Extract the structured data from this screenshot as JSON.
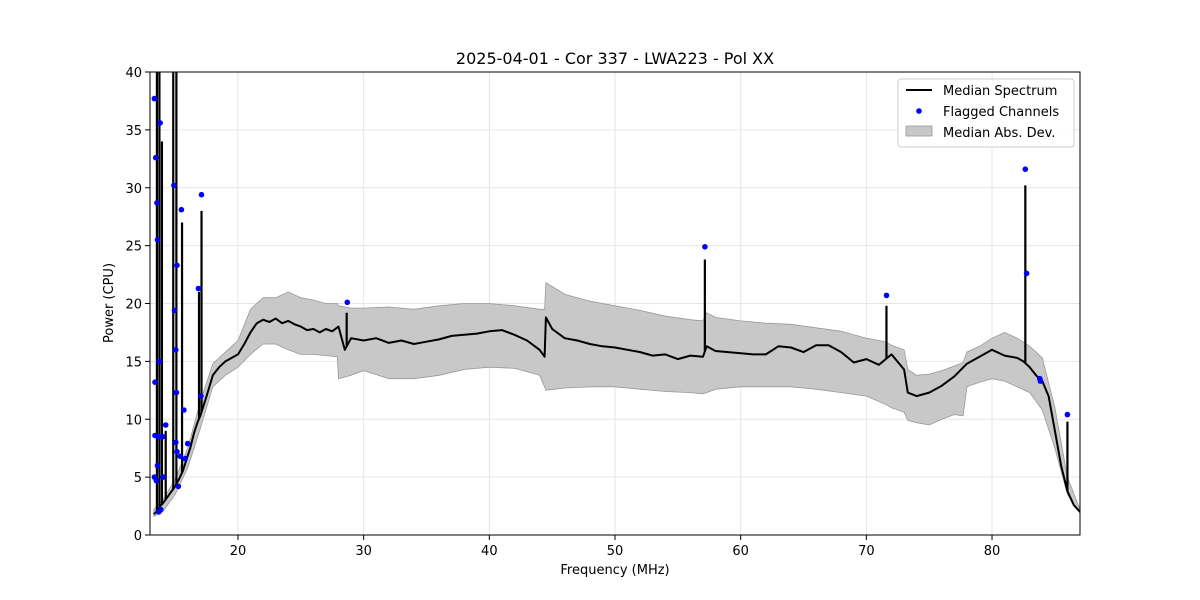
{
  "chart_data": {
    "type": "line",
    "title": "2025-04-01 - Cor 337 - LWA223 - Pol XX",
    "xlabel": "Frequency (MHz)",
    "ylabel": "Power (CPU)",
    "xlim": [
      13,
      87
    ],
    "ylim": [
      0,
      40
    ],
    "xticks": [
      20,
      30,
      40,
      50,
      60,
      70,
      80
    ],
    "yticks": [
      0,
      5,
      10,
      15,
      20,
      25,
      30,
      35,
      40
    ],
    "grid": true,
    "legend_position": "top-right",
    "colors": {
      "median": "#000000",
      "flagged": "#0000ff",
      "mad": "#c8c8c8",
      "mad_edge": "#999999"
    },
    "legend": [
      {
        "label": "Median Spectrum",
        "kind": "line"
      },
      {
        "label": "Flagged Channels",
        "kind": "point"
      },
      {
        "label": "Median Abs. Dev.",
        "kind": "band"
      }
    ],
    "series": [
      {
        "name": "Median Spectrum",
        "x": [
          13.3,
          13.5,
          13.6,
          13.7,
          13.8,
          13.9,
          14.0,
          14.2,
          14.4,
          14.6,
          14.8,
          15.0,
          15.3,
          15.6,
          15.9,
          16.2,
          16.5,
          16.8,
          17.0,
          17.5,
          18.0,
          18.5,
          19.0,
          19.5,
          20.0,
          20.5,
          21.0,
          21.5,
          22.0,
          22.5,
          23.0,
          23.5,
          24.0,
          24.5,
          25.0,
          25.5,
          26.0,
          26.5,
          27.0,
          27.5,
          28.0,
          28.5,
          29.0,
          30.0,
          31.0,
          32.0,
          33.0,
          34.0,
          35.0,
          36.0,
          37.0,
          38.0,
          39.0,
          40.0,
          41.0,
          42.0,
          43.0,
          44.0,
          44.4,
          44.5,
          45.0,
          46.0,
          47.0,
          48.0,
          49.0,
          50.0,
          51.0,
          52.0,
          53.0,
          54.0,
          55.0,
          56.0,
          57.0,
          57.3,
          58.0,
          59.0,
          60.0,
          61.0,
          62.0,
          63.0,
          64.0,
          65.0,
          66.0,
          67.0,
          68.0,
          69.0,
          70.0,
          71.0,
          72.0,
          73.0,
          73.3,
          74.0,
          75.0,
          76.0,
          77.0,
          78.0,
          79.0,
          80.0,
          81.0,
          82.0,
          82.5,
          83.0,
          83.5,
          84.0,
          84.5,
          85.0,
          85.5,
          86.0,
          86.5,
          87.0
        ],
        "y": [
          1.8,
          2.0,
          2.2,
          2.3,
          2.5,
          2.6,
          2.7,
          3.0,
          3.3,
          3.6,
          3.9,
          4.2,
          4.8,
          5.5,
          6.5,
          7.5,
          8.8,
          9.8,
          10.3,
          12.0,
          13.8,
          14.5,
          15.0,
          15.3,
          15.6,
          16.5,
          17.5,
          18.3,
          18.6,
          18.4,
          18.7,
          18.3,
          18.5,
          18.2,
          18.0,
          17.7,
          17.8,
          17.5,
          17.8,
          17.6,
          18.0,
          16.0,
          17.0,
          16.8,
          17.0,
          16.6,
          16.8,
          16.5,
          16.7,
          16.9,
          17.2,
          17.3,
          17.4,
          17.6,
          17.7,
          17.3,
          16.8,
          16.0,
          15.4,
          18.8,
          17.8,
          17.0,
          16.8,
          16.5,
          16.3,
          16.2,
          16.0,
          15.8,
          15.5,
          15.6,
          15.2,
          15.5,
          15.4,
          16.3,
          15.9,
          15.8,
          15.7,
          15.6,
          15.6,
          16.3,
          16.2,
          15.8,
          16.4,
          16.4,
          15.8,
          14.9,
          15.2,
          14.7,
          15.6,
          14.3,
          12.3,
          12.0,
          12.3,
          12.9,
          13.7,
          14.8,
          15.4,
          16.0,
          15.5,
          15.3,
          15.0,
          14.5,
          13.8,
          13.3,
          12.0,
          9.0,
          6.0,
          3.8,
          2.6,
          2.0
        ],
        "spikes": [
          {
            "x": 13.55,
            "top": 40
          },
          {
            "x": 13.75,
            "top": 40
          },
          {
            "x": 13.95,
            "top": 34
          },
          {
            "x": 14.25,
            "top": 9
          },
          {
            "x": 14.85,
            "top": 40
          },
          {
            "x": 15.1,
            "top": 40
          },
          {
            "x": 15.55,
            "top": 27
          },
          {
            "x": 16.9,
            "top": 21
          },
          {
            "x": 17.1,
            "top": 28
          },
          {
            "x": 28.65,
            "top": 19.2
          },
          {
            "x": 57.15,
            "top": 23.8
          },
          {
            "x": 71.6,
            "top": 19.8
          },
          {
            "x": 82.65,
            "top": 30.2
          },
          {
            "x": 86.0,
            "top": 9.8
          }
        ]
      },
      {
        "name": "Median Abs. Dev.",
        "x": [
          13.3,
          14.0,
          15.0,
          16.0,
          17.0,
          18.0,
          19.0,
          20.0,
          21.0,
          22.0,
          23.0,
          24.0,
          25.0,
          26.0,
          27.0,
          27.9,
          28.0,
          29.0,
          30.0,
          32.0,
          34.0,
          36.0,
          38.0,
          40.0,
          42.0,
          44.0,
          44.4,
          44.5,
          46.0,
          48.0,
          50.0,
          52.0,
          54.0,
          56.0,
          57.0,
          57.3,
          58.0,
          60.0,
          62.0,
          64.0,
          66.0,
          68.0,
          70.0,
          71.5,
          72.0,
          73.0,
          73.3,
          74.0,
          75.0,
          76.0,
          77.0,
          77.7,
          78.0,
          79.0,
          80.0,
          81.0,
          82.0,
          83.0,
          84.0,
          85.0,
          86.0,
          87.0
        ],
        "upper": [
          2.2,
          3.0,
          4.8,
          7.5,
          11.5,
          14.8,
          15.8,
          16.8,
          19.5,
          20.5,
          20.5,
          21.0,
          20.5,
          20.3,
          20.0,
          20.0,
          19.8,
          19.6,
          19.6,
          19.7,
          19.5,
          19.8,
          20.0,
          20.0,
          19.8,
          19.5,
          19.5,
          21.8,
          20.8,
          20.2,
          19.8,
          19.4,
          18.9,
          18.6,
          18.5,
          19.2,
          18.8,
          18.5,
          18.3,
          18.2,
          17.9,
          17.6,
          17.0,
          16.7,
          16.4,
          16.0,
          14.3,
          13.8,
          13.9,
          14.2,
          14.6,
          14.9,
          15.8,
          16.3,
          17.0,
          17.5,
          17.0,
          16.3,
          15.3,
          11.0,
          5.0,
          2.2
        ],
        "lower": [
          1.6,
          2.0,
          3.5,
          5.8,
          9.2,
          12.8,
          13.8,
          14.5,
          15.6,
          16.5,
          16.5,
          16.0,
          15.6,
          15.6,
          15.5,
          15.4,
          13.5,
          13.8,
          14.2,
          13.5,
          13.5,
          13.8,
          14.3,
          14.5,
          14.4,
          13.8,
          12.8,
          12.5,
          12.7,
          12.8,
          12.8,
          12.6,
          12.4,
          12.3,
          12.2,
          12.3,
          12.6,
          12.8,
          12.8,
          12.8,
          12.6,
          12.3,
          12.0,
          11.3,
          11.0,
          10.6,
          9.9,
          9.7,
          9.5,
          10.0,
          10.4,
          10.3,
          12.8,
          13.2,
          13.5,
          13.3,
          12.8,
          12.3,
          10.8,
          7.5,
          3.5,
          1.9
        ]
      },
      {
        "name": "Flagged Channels",
        "points": [
          {
            "x": 13.35,
            "y": 37.7
          },
          {
            "x": 13.45,
            "y": 32.6
          },
          {
            "x": 13.55,
            "y": 28.7
          },
          {
            "x": 13.6,
            "y": 25.5
          },
          {
            "x": 13.4,
            "y": 13.2
          },
          {
            "x": 13.4,
            "y": 8.6
          },
          {
            "x": 13.35,
            "y": 5.0
          },
          {
            "x": 13.5,
            "y": 4.7
          },
          {
            "x": 13.6,
            "y": 6.0
          },
          {
            "x": 13.65,
            "y": 8.5
          },
          {
            "x": 13.75,
            "y": 15.0
          },
          {
            "x": 13.7,
            "y": 2.0
          },
          {
            "x": 13.85,
            "y": 2.2
          },
          {
            "x": 13.8,
            "y": 35.6
          },
          {
            "x": 14.0,
            "y": 8.5
          },
          {
            "x": 14.05,
            "y": 5.0
          },
          {
            "x": 14.25,
            "y": 9.5
          },
          {
            "x": 14.9,
            "y": 30.2
          },
          {
            "x": 14.95,
            "y": 19.4
          },
          {
            "x": 15.05,
            "y": 16.0
          },
          {
            "x": 15.15,
            "y": 23.3
          },
          {
            "x": 15.1,
            "y": 12.3
          },
          {
            "x": 15.05,
            "y": 8.0
          },
          {
            "x": 15.15,
            "y": 7.2
          },
          {
            "x": 15.25,
            "y": 4.2
          },
          {
            "x": 15.4,
            "y": 6.8
          },
          {
            "x": 15.5,
            "y": 28.1
          },
          {
            "x": 15.7,
            "y": 10.8
          },
          {
            "x": 15.8,
            "y": 6.6
          },
          {
            "x": 16.0,
            "y": 7.9
          },
          {
            "x": 16.85,
            "y": 21.3
          },
          {
            "x": 17.1,
            "y": 29.4
          },
          {
            "x": 17.05,
            "y": 12.0
          },
          {
            "x": 28.7,
            "y": 20.1
          },
          {
            "x": 57.15,
            "y": 24.9
          },
          {
            "x": 71.6,
            "y": 20.7
          },
          {
            "x": 82.65,
            "y": 31.6
          },
          {
            "x": 82.75,
            "y": 22.6
          },
          {
            "x": 83.8,
            "y": 13.5
          },
          {
            "x": 83.85,
            "y": 13.3
          },
          {
            "x": 86.0,
            "y": 10.4
          }
        ]
      }
    ]
  }
}
